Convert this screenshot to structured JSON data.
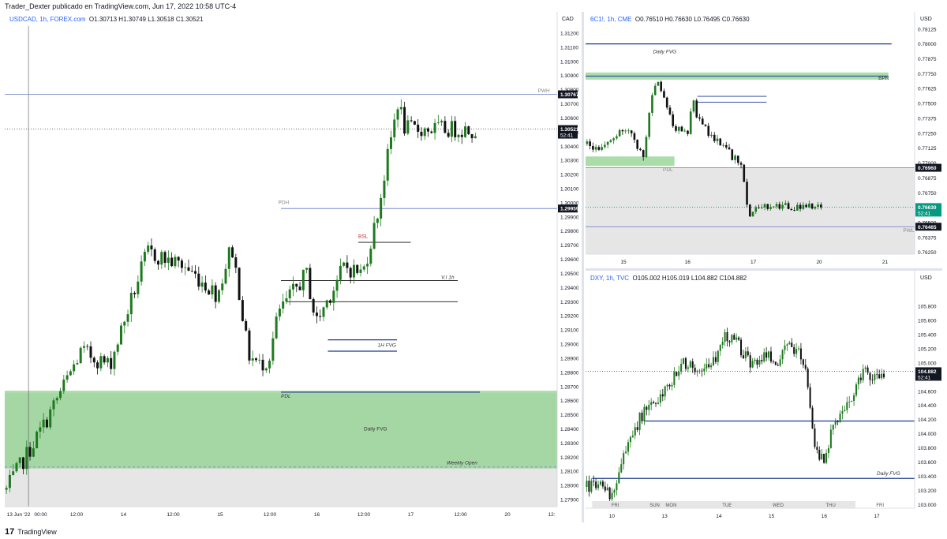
{
  "header": {
    "publisher_text": "Trader_Dexter publicado en TradingView.com, Jun 17, 2022 10:58 UTC-4"
  },
  "footer": {
    "brand": "TradingView",
    "logo_glyph": "17"
  },
  "colors": {
    "up": "#1e7a1e",
    "down": "#111111",
    "fvg": "#8fd18f",
    "line": "#1a3a8f",
    "label_bg": "#131722",
    "price_green": "#089981"
  },
  "chart_data": [
    {
      "id": "usdcad",
      "type": "candlestick",
      "legend": {
        "symbol": "USDCAD, 1h, FOREX.com",
        "o": "O1.30713",
        "h": "H1.30749",
        "l": "L1.30518",
        "c": "C1.30521"
      },
      "currency": "CAD",
      "ylim": [
        1.2785,
        1.3125
      ],
      "y_ticks": [
        "1.31200",
        "1.31100",
        "1.31000",
        "1.30900",
        "1.30800",
        "1.30700",
        "1.30600",
        "1.30500",
        "1.30400",
        "1.30300",
        "1.30200",
        "1.30100",
        "1.30000",
        "1.29900",
        "1.29800",
        "1.29700",
        "1.29600",
        "1.29500",
        "1.29400",
        "1.29300",
        "1.29200",
        "1.29100",
        "1.29000",
        "1.28900",
        "1.28800",
        "1.28700",
        "1.28600",
        "1.28500",
        "1.28400",
        "1.28300",
        "1.28200",
        "1.28100",
        "1.28000",
        "1.27900"
      ],
      "x_ticks": [
        "13 Jun '22",
        "00:00",
        "12:00",
        "14",
        "12:00",
        "15",
        "12:00",
        "16",
        "12:00",
        "17",
        "12:00",
        "20",
        "12:"
      ],
      "price_labels": [
        {
          "text": "1.30767",
          "value": 1.30767,
          "style": "dark"
        },
        {
          "text": "1.30521",
          "value": 1.30521,
          "style": "dark",
          "sub": "52:41"
        },
        {
          "text": "1.29959",
          "value": 1.29959,
          "style": "dark"
        }
      ],
      "levels": [
        {
          "label": "PWH",
          "value": 1.30767,
          "style": "solid",
          "color": "#7b8ccc"
        },
        {
          "label": "",
          "value": 1.30521,
          "style": "dotted",
          "color": "#555555"
        },
        {
          "label": "PDH",
          "value": 1.29959,
          "style": "solid",
          "color": "#7b8ccc"
        },
        {
          "label": "BSL",
          "value": 1.2972,
          "style": "solid",
          "color": "#111111"
        },
        {
          "label": "V.I 1h",
          "value": 1.2945,
          "style": "solid",
          "color": "#111111"
        },
        {
          "label": "",
          "value": 1.293,
          "style": "solid",
          "color": "#111111"
        },
        {
          "label": "1H FVG",
          "value": 1.2903,
          "style": "solid",
          "color": "#1a3a8f"
        },
        {
          "label": "PDL",
          "value": 1.2866,
          "style": "solid",
          "color": "#1a3a8f"
        },
        {
          "label": "Weekly Open",
          "value": 1.2813,
          "style": "dashed",
          "color": "#7b8ccc"
        }
      ],
      "zones": [
        {
          "label": "Daily FVG",
          "from": 1.2812,
          "to": 1.2867
        }
      ],
      "annotations": {
        "pwh": "PWH",
        "pdh": "PDH",
        "bsl": "BSL",
        "vi": "V.I 1h",
        "fvg1h": "1H FVG",
        "pdl": "PDL",
        "dfvg": "Daily FVG",
        "wopen": "Weekly Open"
      }
    },
    {
      "id": "6c1",
      "type": "candlestick",
      "legend": {
        "symbol": "6C1!, 1h, CME",
        "o": "O0.76510",
        "h": "H0.76630",
        "l": "L0.76495",
        "c": "C0.76630"
      },
      "currency": "USD",
      "ylim": [
        0.76235,
        0.7815
      ],
      "y_ticks": [
        "0.78125",
        "0.78000",
        "0.77875",
        "0.77750",
        "0.77625",
        "0.77500",
        "0.77375",
        "0.77250",
        "0.77125",
        "0.77000",
        "0.76875",
        "0.76750",
        "0.76625",
        "0.76500",
        "0.76375",
        "0.76250"
      ],
      "x_ticks": [
        "15",
        "16",
        "17",
        "20",
        "21"
      ],
      "price_labels": [
        {
          "text": "0.76960",
          "value": 0.7696,
          "style": "dark"
        },
        {
          "text": "0.76630",
          "value": 0.7663,
          "style": "green",
          "sub": "52:41"
        },
        {
          "text": "0.76465",
          "value": 0.76465,
          "style": "dark"
        }
      ],
      "levels": [
        {
          "label": "Daily FVG",
          "value": 0.78,
          "style": "solid",
          "color": "#1a3a8f"
        },
        {
          "label": "",
          "value": 0.7696,
          "style": "solid",
          "color": "#7b8ccc"
        },
        {
          "label": "",
          "value": 0.7663,
          "style": "dotted",
          "color": "#089981"
        },
        {
          "label": "PWL",
          "value": 0.76465,
          "style": "solid",
          "color": "#7b8ccc"
        }
      ],
      "annotations": {
        "dfvg": "Daily FVG",
        "bpr": "BPR",
        "pdl": "PDL",
        "pwl": "PWL"
      }
    },
    {
      "id": "dxy",
      "type": "candlestick",
      "legend": {
        "symbol": "DXY, 1h, TVC",
        "o": "O105.002",
        "h": "H105.019",
        "l": "L104.882",
        "c": "C104.882"
      },
      "currency": "USD",
      "ylim": [
        102.95,
        106.1
      ],
      "y_ticks": [
        "105.800",
        "105.600",
        "105.400",
        "105.200",
        "105.000",
        "104.800",
        "104.600",
        "104.400",
        "104.200",
        "104.000",
        "103.800",
        "103.600",
        "103.400",
        "103.200",
        "103.000"
      ],
      "x_ticks": [
        "10",
        "13",
        "14",
        "15",
        "16",
        "17"
      ],
      "day_labels": [
        "FRI",
        "SUN",
        "MON",
        "TUE",
        "WED",
        "THU",
        "FRI"
      ],
      "price_labels": [
        {
          "text": "104.882",
          "value": 104.882,
          "style": "dark",
          "sub": "52:41"
        }
      ],
      "levels": [
        {
          "label": "",
          "value": 104.882,
          "style": "dotted",
          "color": "#555555"
        },
        {
          "label": "",
          "value": 104.18,
          "style": "solid",
          "color": "#1a3a8f"
        },
        {
          "label": "Daily FVG",
          "value": 103.37,
          "style": "solid",
          "color": "#1a3a8f"
        }
      ],
      "annotations": {
        "dfvg": "Daily FVG"
      }
    }
  ]
}
